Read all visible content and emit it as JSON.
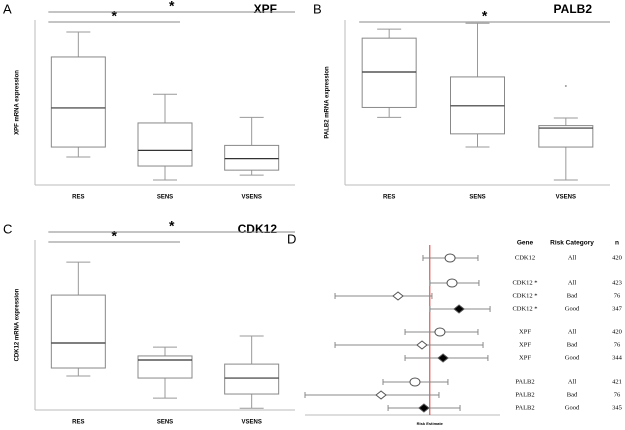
{
  "chart_data": [
    {
      "type": "box",
      "panel_label": "A",
      "title": "XPF",
      "y_label": "XPF mRNA expression",
      "categories": [
        "RES",
        "SENS",
        "VSENS"
      ],
      "ylim": [
        0,
        100
      ],
      "boxes": [
        {
          "min": 17,
          "q1": 23,
          "median": 46.7,
          "q3": 77.6,
          "max": 92.7,
          "outliers": []
        },
        {
          "min": 3,
          "q1": 11.5,
          "median": 21,
          "q3": 37.6,
          "max": 55,
          "outliers": []
        },
        {
          "min": 6,
          "q1": 9,
          "median": 16,
          "q3": 24,
          "max": 41,
          "outliers": []
        }
      ],
      "significance": [
        {
          "from": 0,
          "to": 1,
          "label": "*"
        },
        {
          "from": 0,
          "to": 2,
          "label": "*"
        }
      ]
    },
    {
      "type": "box",
      "panel_label": "B",
      "title": "PALB2",
      "y_label": "PALB2 mRNA expression",
      "categories": [
        "RES",
        "SENS",
        "VSENS"
      ],
      "ylim": [
        0,
        100
      ],
      "boxes": [
        {
          "min": 41,
          "q1": 47,
          "median": 68.5,
          "q3": 89,
          "max": 94.5,
          "outliers": []
        },
        {
          "min": 23,
          "q1": 31,
          "median": 48,
          "q3": 65.5,
          "max": 98,
          "outliers": []
        },
        {
          "min": 3,
          "q1": 23,
          "median": 34.5,
          "q3": 36,
          "max": 40.6,
          "outliers": [
            60
          ]
        }
      ],
      "significance": [
        {
          "from": 0,
          "to": 2,
          "label": "*"
        }
      ]
    },
    {
      "type": "box",
      "panel_label": "C",
      "title": "CDK12",
      "y_label": "CDK12 mRNA expression",
      "categories": [
        "RES",
        "SENS",
        "VSENS"
      ],
      "ylim": [
        0,
        100
      ],
      "boxes": [
        {
          "min": 20,
          "q1": 24.7,
          "median": 39.4,
          "q3": 67.6,
          "max": 87,
          "outliers": []
        },
        {
          "min": 7,
          "q1": 18.8,
          "median": 29.4,
          "q3": 31.8,
          "max": 37,
          "outliers": []
        },
        {
          "min": 1,
          "q1": 9.4,
          "median": 18.8,
          "q3": 27,
          "max": 43.5,
          "outliers": []
        }
      ],
      "significance": [
        {
          "from": 0,
          "to": 1,
          "label": "*"
        },
        {
          "from": 0,
          "to": 2,
          "label": "*"
        }
      ]
    },
    {
      "type": "forest",
      "panel_label": "D",
      "x_label": "Risk Estimate",
      "columns": [
        "Gene",
        "Risk Category",
        "n"
      ],
      "xlim": [
        0,
        100
      ],
      "reference": 64,
      "rows": [
        {
          "gene": "CDK12",
          "category": "All",
          "n": 420,
          "estimate": 74.4,
          "lower": 60.5,
          "upper": 88.7,
          "marker": "circle",
          "filled": false
        },
        {
          "gene": "CDK12 *",
          "category": "All",
          "n": 423,
          "estimate": 75.4,
          "lower": 64.1,
          "upper": 89.2,
          "marker": "circle",
          "filled": false
        },
        {
          "gene": "CDK12 *",
          "category": "Bad",
          "n": 76,
          "estimate": 47.7,
          "lower": 15.4,
          "upper": 65.1,
          "marker": "diamond",
          "filled": false
        },
        {
          "gene": "CDK12 *",
          "category": "Good",
          "n": 347,
          "estimate": 79,
          "lower": 64.1,
          "upper": 94.9,
          "marker": "diamond",
          "filled": true
        },
        {
          "gene": "XPF",
          "category": "All",
          "n": 420,
          "estimate": 69.2,
          "lower": 51.3,
          "upper": 88.7,
          "marker": "circle",
          "filled": false
        },
        {
          "gene": "XPF",
          "category": "Bad",
          "n": 76,
          "estimate": 60,
          "lower": 15.4,
          "upper": 91.3,
          "marker": "diamond",
          "filled": false
        },
        {
          "gene": "XPF",
          "category": "Good",
          "n": 344,
          "estimate": 70.8,
          "lower": 51.3,
          "upper": 93.8,
          "marker": "diamond",
          "filled": true
        },
        {
          "gene": "PALB2",
          "category": "All",
          "n": 421,
          "estimate": 56.4,
          "lower": 40,
          "upper": 73.3,
          "marker": "circle",
          "filled": false
        },
        {
          "gene": "PALB2",
          "category": "Bad",
          "n": 76,
          "estimate": 39,
          "lower": 0,
          "upper": 68.7,
          "marker": "diamond",
          "filled": false
        },
        {
          "gene": "PALB2",
          "category": "Good",
          "n": 345,
          "estimate": 61,
          "lower": 42.6,
          "upper": 79.5,
          "marker": "diamond",
          "filled": true
        }
      ]
    }
  ]
}
